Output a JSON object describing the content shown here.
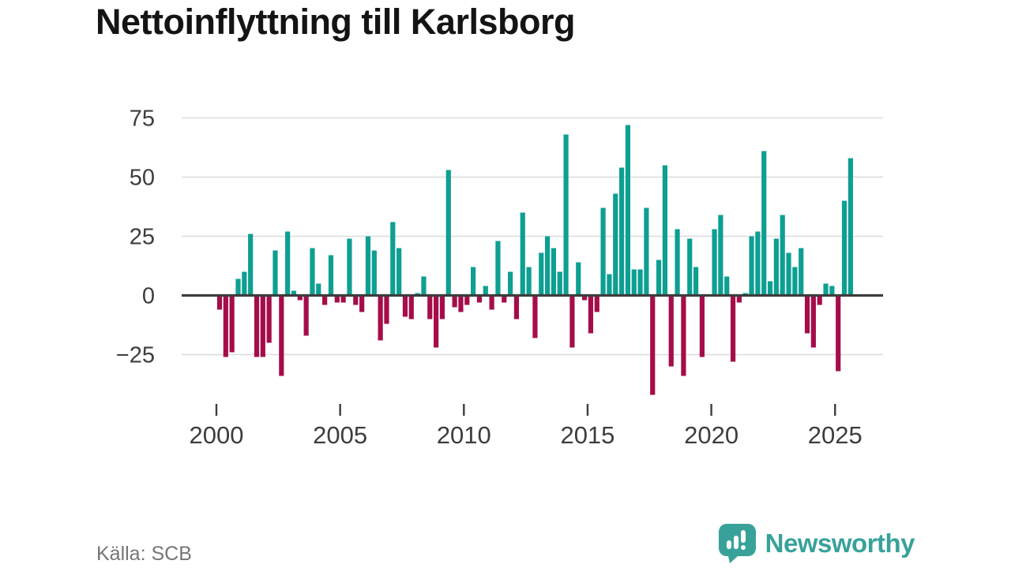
{
  "title": "Nettoinflyttning till Karlsborg",
  "footer": {
    "source": "Källa: SCB",
    "brand": "Newsworthy"
  },
  "colors": {
    "background": "#ffffff",
    "positive": "#0d9f92",
    "negative": "#a50d4a",
    "grid": "#dcdcdc",
    "axis": "#3d3d3d",
    "tick_text": "#3d3d3d",
    "title_text": "#141414",
    "source_text": "#757575",
    "brand_teal": "#38a29a"
  },
  "chart_data": {
    "type": "bar",
    "title": "Nettoinflyttning till Karlsborg",
    "xlabel": "",
    "ylabel": "",
    "unit_period": "quarter",
    "start": "2000-Q1",
    "end": "2025-Q3",
    "values": [
      -6,
      -26,
      -24,
      7,
      10,
      26,
      -26,
      -26,
      -20,
      19,
      -34,
      27,
      2,
      -2,
      -17,
      20,
      5,
      -4,
      17,
      -3,
      -3,
      24,
      -4,
      -7,
      25,
      19,
      -19,
      -12,
      31,
      20,
      -9,
      -10,
      1,
      8,
      -10,
      -22,
      -10,
      53,
      -5,
      -7,
      -4,
      12,
      -3,
      4,
      -6,
      23,
      -3,
      10,
      -10,
      35,
      12,
      -18,
      18,
      25,
      20,
      10,
      68,
      -22,
      14,
      -2,
      -16,
      -7,
      37,
      9,
      43,
      54,
      72,
      11,
      11,
      37,
      -42,
      15,
      55,
      -30,
      28,
      -34,
      24,
      12,
      -26,
      0,
      28,
      34,
      8,
      -28,
      -3,
      1,
      25,
      27,
      61,
      6,
      24,
      34,
      18,
      12,
      20,
      -16,
      -22,
      -4,
      5,
      4,
      -32,
      40,
      58
    ],
    "x_tick_years": [
      2000,
      2005,
      2010,
      2015,
      2020,
      2025
    ],
    "y_ticks": [
      {
        "label": "75",
        "value": 75
      },
      {
        "label": "50",
        "value": 50
      },
      {
        "label": "25",
        "value": 25
      },
      {
        "label": "0",
        "value": 0
      },
      {
        "label": "−25",
        "value": -25
      }
    ],
    "ylim": [
      -45,
      82
    ],
    "grid": true,
    "legend": false,
    "source": "Källa: SCB"
  }
}
